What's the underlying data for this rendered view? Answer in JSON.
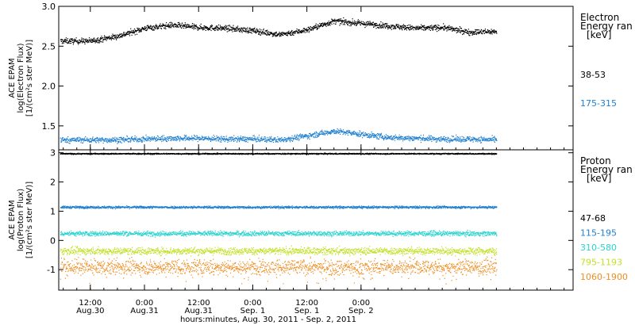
{
  "chart_data": [
    {
      "type": "scatter",
      "panel": "electron",
      "ylabel_lines": [
        "ACE EPAM",
        "log(Electron Flux)",
        "[1/(cm²s ster MeV)]"
      ],
      "ylim": [
        1.2,
        3.0
      ],
      "yticks": [
        "3.0",
        "2.5",
        "2.0",
        "1.5"
      ],
      "yticks_values": [
        3.0,
        2.5,
        2.0,
        1.5
      ],
      "legend_title": [
        "Electron",
        "Energy ran",
        "[keV]"
      ],
      "series": [
        {
          "name": "38-53",
          "color": "#000000",
          "t": [
            0,
            6,
            12,
            18,
            24,
            30,
            36,
            42,
            48,
            54,
            60,
            66,
            72,
            78,
            84,
            90
          ],
          "values": [
            2.57,
            2.63,
            2.73,
            2.77,
            2.74,
            2.73,
            2.7,
            2.65,
            2.71,
            2.82,
            2.79,
            2.76,
            2.73,
            2.74,
            2.68,
            2.69
          ]
        },
        {
          "name": "175-315",
          "color": "#1f7fd0",
          "t": [
            0,
            6,
            12,
            18,
            24,
            30,
            36,
            42,
            48,
            54,
            60,
            66,
            72,
            78,
            84,
            90
          ],
          "values": [
            1.33,
            1.33,
            1.34,
            1.35,
            1.35,
            1.34,
            1.34,
            1.33,
            1.38,
            1.44,
            1.4,
            1.36,
            1.35,
            1.34,
            1.34,
            1.33
          ]
        }
      ]
    },
    {
      "type": "scatter",
      "panel": "proton",
      "ylabel_lines": [
        "ACE EPAM",
        "log(Proton Flux)",
        "[1/(cm²s ster MeV)]"
      ],
      "ylim": [
        -1.7,
        3.1
      ],
      "yticks": [
        "3",
        "2",
        "1",
        "0",
        "-1"
      ],
      "yticks_values": [
        3,
        2,
        1,
        0,
        -1
      ],
      "legend_title": [
        "Proton",
        "Energy ran",
        "[keV]"
      ],
      "series": [
        {
          "name": "47-68",
          "color": "#000000",
          "level": 2.98,
          "spread": 0.02
        },
        {
          "name": "115-195",
          "color": "#1f7fd0",
          "level": 1.15,
          "spread": 0.04
        },
        {
          "name": "310-580",
          "color": "#29d3cf",
          "level": 0.25,
          "spread": 0.08
        },
        {
          "name": "795-1193",
          "color": "#c4e02a",
          "level": -0.35,
          "spread": 0.12
        },
        {
          "name": "1060-1900",
          "color": "#f08c1e",
          "level": -0.9,
          "spread": 0.25
        }
      ]
    }
  ],
  "x_axis": {
    "range_hours": [
      -7,
      107
    ],
    "data_end_hours": 90,
    "ticks": [
      {
        "t": 0,
        "time": "12:00",
        "date": "Aug.30"
      },
      {
        "t": 12,
        "time": "0:00",
        "date": "Aug.31"
      },
      {
        "t": 24,
        "time": "12:00",
        "date": "Aug.31"
      },
      {
        "t": 36,
        "time": "0:00",
        "date": "Sep. 1"
      },
      {
        "t": 48,
        "time": "12:00",
        "date": "Sep. 1"
      },
      {
        "t": 60,
        "time": "0:00",
        "date": "Sep. 2"
      }
    ],
    "label": "hours:minutes, Aug. 30, 2011 - Sep. 2, 2011"
  }
}
